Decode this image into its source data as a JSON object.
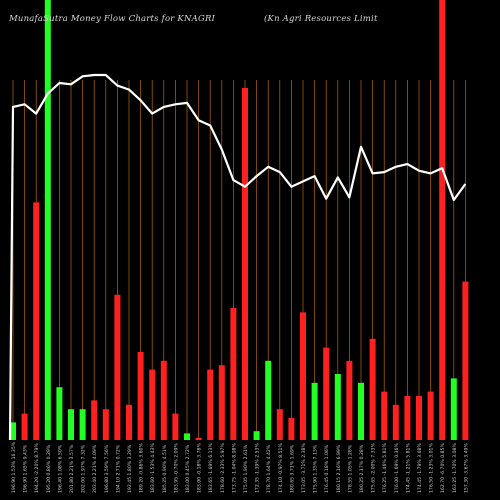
{
  "chart_data": {
    "type": "bar",
    "title": "MunafaSutra  Money Flow  Charts for KNAGRI",
    "subtitle": "(Kn  Agri   Resources Limit",
    "colors": {
      "background": "#000000",
      "up": "#22ff22",
      "down": "#ff2020",
      "price_line": "#ffffff",
      "grid": "#b8660b",
      "label": "#cfcfcf"
    },
    "ylim": [
      0,
      100
    ],
    "categories": [
      "196.90 1.53% 16.35%",
      "196.90 1.65% 9.43%",
      "194.20 -2.20% 8.79%",
      "195.20 0.86% 0.29%",
      "196.40 1.08% 6.50%",
      "201.80 2.21% 3.57%",
      "202.00 1.97% 7.32%",
      "203.40 2.21% 4.09%",
      "196.80 3.59% 7.56%",
      "194.10 2.71% 0.72%",
      "192.45 1.80% 3.29%",
      "189.20 -0.86% 3.60%",
      "183.60 -1.53% 4.43%",
      "185.25 0.90% 4.51%",
      "183.95 -0.70% 2.09%",
      "183.00 0.45% 2.72%",
      "183.00 -0.18% 3.78%",
      "183.65 -1.69% 6.13%",
      "178.60 -2.33% 5.97%",
      "173.75 -1.04% 8.08%",
      "175.05 1.90% 2.61%",
      "172.35 -1.39% 2.53%",
      "178.70 1.64% 4.42%",
      "174.10 -0.97% 8.51%",
      "180.65 3.71% 1.69%",
      "173.05 -3.71% 2.38%",
      "175.90 1.35% 7.13%",
      "176.45 0.18% 1.06%",
      "180.15 2.16% 6.99%",
      "178.55 1.05% 1.28%",
      "180.25 2.17% 0.28%",
      "175.65 -2.00% 7.33%",
      "176.25 -1.46% 5.81%",
      "176.00 -1.69% 0.36%",
      "174.45 -1.21% 5.81%",
      "174.45 -1.79% 3.68%",
      "176.50 -1.23% 3.01%",
      "162.70 -6.70% 0.85%",
      "163.25 -1.70% 3.08%",
      "157.30 -3.67% 3.49%"
    ],
    "price": [
      50,
      52,
      45,
      60,
      68,
      67,
      73,
      74,
      74,
      66,
      63,
      55,
      45,
      50,
      52,
      53,
      40,
      36,
      18,
      -5,
      -10,
      -2,
      5,
      1,
      -10,
      -6,
      -2,
      -19,
      -3,
      -18,
      20,
      0,
      1,
      5,
      7,
      2,
      0,
      4,
      -20,
      -8
    ],
    "series": [
      {
        "values": [
          4,
          6,
          54,
          100,
          12,
          7,
          7,
          9,
          7,
          33,
          8,
          20,
          16,
          18,
          6,
          1.5,
          0.5,
          16,
          17,
          30,
          80,
          2,
          18,
          7,
          5,
          29,
          13,
          21,
          15,
          18,
          13,
          23,
          11,
          8,
          10,
          10,
          11,
          100,
          14,
          36
        ],
        "direction": [
          "up",
          "down",
          "down",
          "up",
          "up",
          "up",
          "up",
          "down",
          "down",
          "down",
          "down",
          "down",
          "down",
          "down",
          "down",
          "up",
          "down",
          "down",
          "down",
          "down",
          "down",
          "up",
          "up",
          "down",
          "down",
          "down",
          "up",
          "down",
          "up",
          "down",
          "up",
          "down",
          "down",
          "down",
          "down",
          "down",
          "down",
          "down",
          "up",
          "down"
        ]
      }
    ],
    "grid": true
  }
}
